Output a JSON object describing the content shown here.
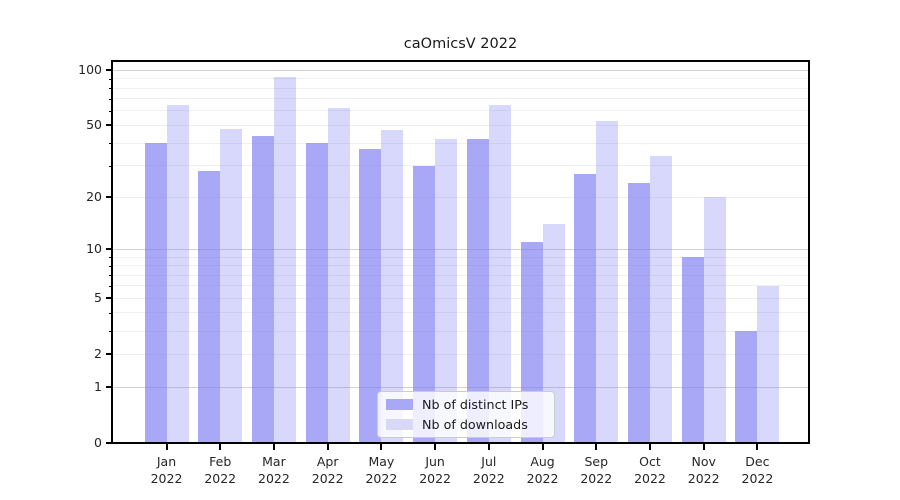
{
  "title": "caOmicsV 2022",
  "legend": {
    "items": [
      {
        "key": "ips",
        "label": "Nb of distinct IPs"
      },
      {
        "key": "downloads",
        "label": "Nb of downloads"
      }
    ]
  },
  "colors": {
    "ips": "rgba(121,121,243,0.65)",
    "downloads": "rgba(121,121,243,0.29)",
    "ips_solid": "#a8a8f7",
    "downloads_solid": "#d8d8f9",
    "grid_major": "#d2d2d2",
    "grid_minor": "#efefef",
    "axis": "#000000",
    "text": "#262626"
  },
  "y_axis": {
    "scale": "log10(1+v)",
    "major_ticks": [
      0,
      1,
      2,
      5,
      10,
      20,
      50,
      100
    ],
    "minor_ticks": [
      3,
      4,
      6,
      7,
      8,
      9,
      30,
      40,
      60,
      70,
      80,
      90
    ],
    "major_gridlines": [
      1,
      10,
      100
    ],
    "minor_gridlines": [
      2,
      3,
      4,
      5,
      6,
      7,
      8,
      9,
      20,
      30,
      40,
      50,
      60,
      70,
      80,
      90
    ]
  },
  "x_axis": {
    "categories": [
      {
        "month": "Jan",
        "year": "2022"
      },
      {
        "month": "Feb",
        "year": "2022"
      },
      {
        "month": "Mar",
        "year": "2022"
      },
      {
        "month": "Apr",
        "year": "2022"
      },
      {
        "month": "May",
        "year": "2022"
      },
      {
        "month": "Jun",
        "year": "2022"
      },
      {
        "month": "Jul",
        "year": "2022"
      },
      {
        "month": "Aug",
        "year": "2022"
      },
      {
        "month": "Sep",
        "year": "2022"
      },
      {
        "month": "Oct",
        "year": "2022"
      },
      {
        "month": "Nov",
        "year": "2022"
      },
      {
        "month": "Dec",
        "year": "2022"
      }
    ]
  },
  "chart_data": {
    "type": "bar",
    "title": "caOmicsV 2022",
    "xlabel": "",
    "ylabel": "",
    "yscale": "log1p",
    "ylim": [
      0,
      112
    ],
    "grid": true,
    "legend_position": "lower center",
    "categories": [
      "Jan 2022",
      "Feb 2022",
      "Mar 2022",
      "Apr 2022",
      "May 2022",
      "Jun 2022",
      "Jul 2022",
      "Aug 2022",
      "Sep 2022",
      "Oct 2022",
      "Nov 2022",
      "Dec 2022"
    ],
    "series": [
      {
        "name": "Nb of distinct IPs",
        "key": "ips",
        "values": [
          40,
          28,
          44,
          40,
          37,
          30,
          42,
          11,
          27,
          24,
          9,
          3
        ]
      },
      {
        "name": "Nb of downloads",
        "key": "downloads",
        "values": [
          65,
          48,
          92,
          62,
          47,
          42,
          65,
          14,
          53,
          34,
          20,
          6
        ]
      }
    ]
  }
}
